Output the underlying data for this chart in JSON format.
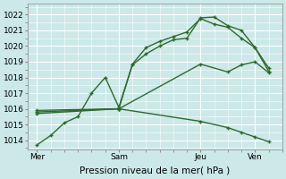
{
  "xlabel": "Pression niveau de la mer( hPa )",
  "bg_color": "#cce8e8",
  "grid_color": "#ffffff",
  "line_color": "#2d6a2d",
  "ylim": [
    1013.4,
    1022.7
  ],
  "yticks": [
    1014,
    1015,
    1016,
    1017,
    1018,
    1019,
    1020,
    1021,
    1022
  ],
  "day_labels": [
    "Mer",
    "Sam",
    "Jeu",
    "Ven"
  ],
  "day_positions": [
    0,
    36,
    72,
    96
  ],
  "xlim": [
    -4,
    108
  ],
  "vline_positions": [
    0,
    36,
    72,
    96
  ],
  "line1_x": [
    0,
    6,
    12,
    18,
    24,
    30,
    36,
    42,
    48,
    54,
    60,
    66,
    72,
    78,
    84,
    90,
    96,
    102
  ],
  "line1_y": [
    1013.7,
    1014.3,
    1015.1,
    1015.5,
    1017.0,
    1018.0,
    1016.1,
    1018.8,
    1019.5,
    1020.0,
    1020.4,
    1020.5,
    1021.8,
    1021.85,
    1021.3,
    1021.0,
    1019.9,
    1018.4
  ],
  "line2_x": [
    0,
    36,
    42,
    48,
    54,
    60,
    66,
    72,
    78,
    84,
    90,
    96,
    102
  ],
  "line2_y": [
    1015.9,
    1016.0,
    1018.85,
    1019.9,
    1020.3,
    1020.6,
    1020.9,
    1021.75,
    1021.4,
    1021.2,
    1020.5,
    1019.9,
    1018.6
  ],
  "line3_x": [
    0,
    36,
    72,
    84,
    90,
    96,
    102
  ],
  "line3_y": [
    1015.8,
    1016.0,
    1018.85,
    1018.35,
    1018.8,
    1019.0,
    1018.3
  ],
  "line4_x": [
    0,
    36,
    72,
    84,
    90,
    96,
    102
  ],
  "line4_y": [
    1015.7,
    1016.0,
    1015.2,
    1014.8,
    1014.5,
    1014.2,
    1013.9
  ],
  "xlabel_fontsize": 7.5,
  "tick_fontsize": 6.5
}
